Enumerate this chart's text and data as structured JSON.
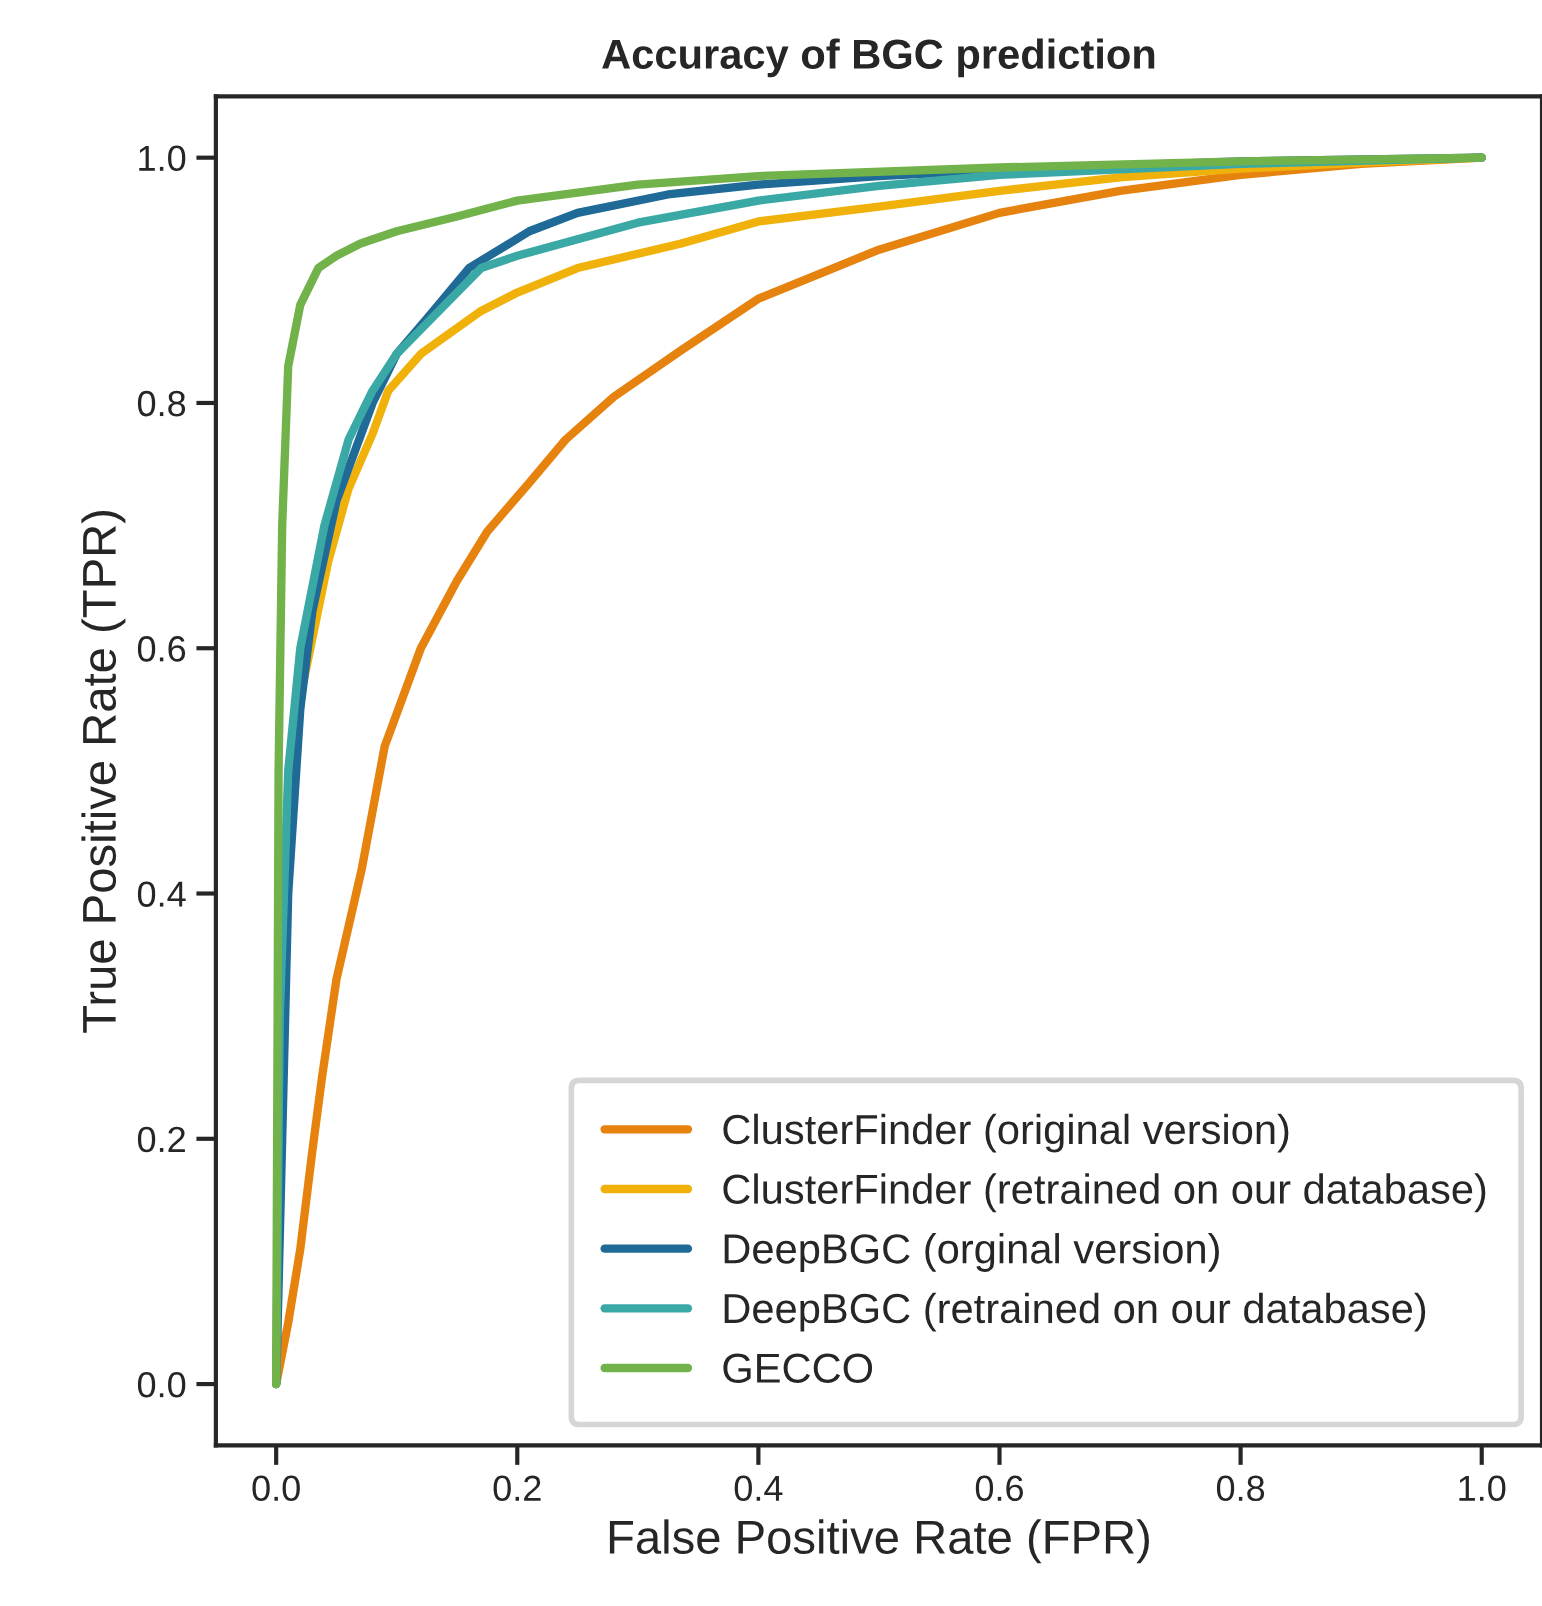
{
  "chart_data": {
    "type": "line",
    "title": "Accuracy of BGC prediction",
    "xlabel": "False Positive Rate (FPR)",
    "ylabel": "True Positive Rate (TPR)",
    "xlim": [
      -0.05,
      1.05
    ],
    "ylim": [
      -0.05,
      1.05
    ],
    "xticks": [
      {
        "value": 0,
        "label": "0.0"
      },
      0.2,
      0.4,
      0.6,
      0.8,
      {
        "value": 1,
        "label": "1.0"
      }
    ],
    "yticks": [
      {
        "value": 0,
        "label": "0.0"
      },
      0.2,
      0.4,
      0.6,
      0.8,
      {
        "value": 1,
        "label": "1.0"
      }
    ],
    "grid": false,
    "legend": "bottom right",
    "marker": "none",
    "line_style": "solid",
    "series": [
      {
        "name": "ClusterFinder (original version)",
        "color": "#e6820e",
        "x": [
          0,
          0.01,
          0.02,
          0.03,
          0.038,
          0.05,
          0.071,
          0.09,
          0.12,
          0.15,
          0.175,
          0.21,
          0.24,
          0.28,
          0.336,
          0.4,
          0.5,
          0.6,
          0.7,
          0.8,
          0.9,
          1
        ],
        "values": [
          0,
          0.05,
          0.11,
          0.19,
          0.25,
          0.33,
          0.42,
          0.52,
          0.6,
          0.655,
          0.695,
          0.735,
          0.77,
          0.805,
          0.843,
          0.885,
          0.925,
          0.955,
          0.973,
          0.986,
          0.995,
          1
        ]
      },
      {
        "name": "ClusterFinder (retrained on our database)",
        "color": "#f0b10a",
        "x": [
          0,
          0.005,
          0.01,
          0.02,
          0.043,
          0.06,
          0.08,
          0.093,
          0.12,
          0.17,
          0.2,
          0.25,
          0.336,
          0.4,
          0.5,
          0.6,
          0.7,
          0.8,
          0.9,
          1
        ],
        "values": [
          0,
          0.3,
          0.45,
          0.56,
          0.67,
          0.73,
          0.775,
          0.81,
          0.84,
          0.875,
          0.89,
          0.91,
          0.93,
          0.948,
          0.96,
          0.973,
          0.984,
          0.991,
          0.996,
          1
        ]
      },
      {
        "name": "DeepBGC (orginal version)",
        "color": "#1f6a96",
        "x": [
          0,
          0.005,
          0.01,
          0.02,
          0.03,
          0.05,
          0.08,
          0.1,
          0.126,
          0.16,
          0.21,
          0.25,
          0.325,
          0.4,
          0.5,
          0.6,
          0.8,
          1
        ],
        "values": [
          0,
          0.2,
          0.4,
          0.55,
          0.63,
          0.72,
          0.8,
          0.84,
          0.87,
          0.91,
          0.94,
          0.955,
          0.97,
          0.978,
          0.985,
          0.99,
          0.997,
          1
        ]
      },
      {
        "name": "DeepBGC (retrained on our database)",
        "color": "#3aa9a5",
        "x": [
          0,
          0.003,
          0.01,
          0.02,
          0.04,
          0.06,
          0.08,
          0.1,
          0.13,
          0.17,
          0.2,
          0.3,
          0.4,
          0.5,
          0.6,
          0.8,
          1
        ],
        "values": [
          0,
          0.3,
          0.5,
          0.6,
          0.7,
          0.77,
          0.81,
          0.84,
          0.87,
          0.91,
          0.92,
          0.947,
          0.965,
          0.977,
          0.986,
          0.995,
          1
        ]
      },
      {
        "name": "GECCO",
        "color": "#72b24a",
        "x": [
          0,
          0.002,
          0.005,
          0.01,
          0.02,
          0.035,
          0.05,
          0.07,
          0.1,
          0.15,
          0.2,
          0.3,
          0.4,
          0.6,
          0.8,
          1
        ],
        "values": [
          0,
          0.5,
          0.7,
          0.83,
          0.88,
          0.91,
          0.92,
          0.93,
          0.94,
          0.952,
          0.965,
          0.978,
          0.985,
          0.992,
          0.997,
          1
        ]
      }
    ]
  }
}
